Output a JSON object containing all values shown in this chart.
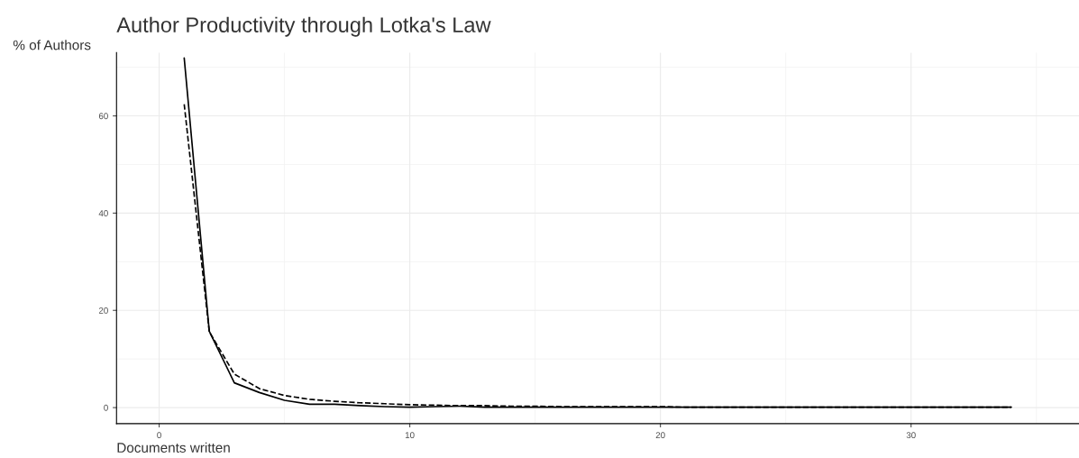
{
  "chart_data": {
    "type": "line",
    "title": "Author Productivity through Lotka's Law",
    "xlabel": "Documents written",
    "ylabel": "% of Authors",
    "x": [
      1,
      2,
      3,
      4,
      5,
      6,
      7,
      8,
      9,
      10,
      11,
      12,
      13,
      14,
      15,
      16,
      17,
      18,
      19,
      20,
      21,
      22,
      23,
      24,
      25,
      26,
      27,
      28,
      29,
      30,
      31,
      32,
      33,
      34
    ],
    "series": [
      {
        "color": "#000000",
        "line_style": "solid",
        "values": [
          71.9,
          15.7,
          5.1,
          3.1,
          1.5,
          0.7,
          0.7,
          0.4,
          0.2,
          0.1,
          0.2,
          0.3,
          0.1,
          0.1,
          0.1,
          0.1,
          0.1,
          0.1,
          0.1,
          0.1,
          0.1,
          0.1,
          0.1,
          0.1,
          0.1,
          0.1,
          0.1,
          0.1,
          0.1,
          0.1,
          0.1,
          0.1,
          0.1,
          0.1
        ]
      },
      {
        "color": "#000000",
        "line_style": "dashed",
        "values": [
          62.4,
          15.6,
          6.9,
          3.9,
          2.5,
          1.7,
          1.3,
          1.0,
          0.8,
          0.6,
          0.5,
          0.4,
          0.4,
          0.3,
          0.3,
          0.2,
          0.2,
          0.2,
          0.2,
          0.2,
          0.1,
          0.1,
          0.1,
          0.1,
          0.1,
          0.1,
          0.1,
          0.1,
          0.1,
          0.1,
          0.1,
          0.1,
          0.1,
          0.1
        ]
      }
    ],
    "xlim": [
      -1.7,
      36.7
    ],
    "ylim": [
      -3.3,
      73
    ],
    "xticks": [
      0,
      10,
      20,
      30
    ],
    "yticks": [
      0,
      20,
      40,
      60
    ],
    "grid": true
  }
}
